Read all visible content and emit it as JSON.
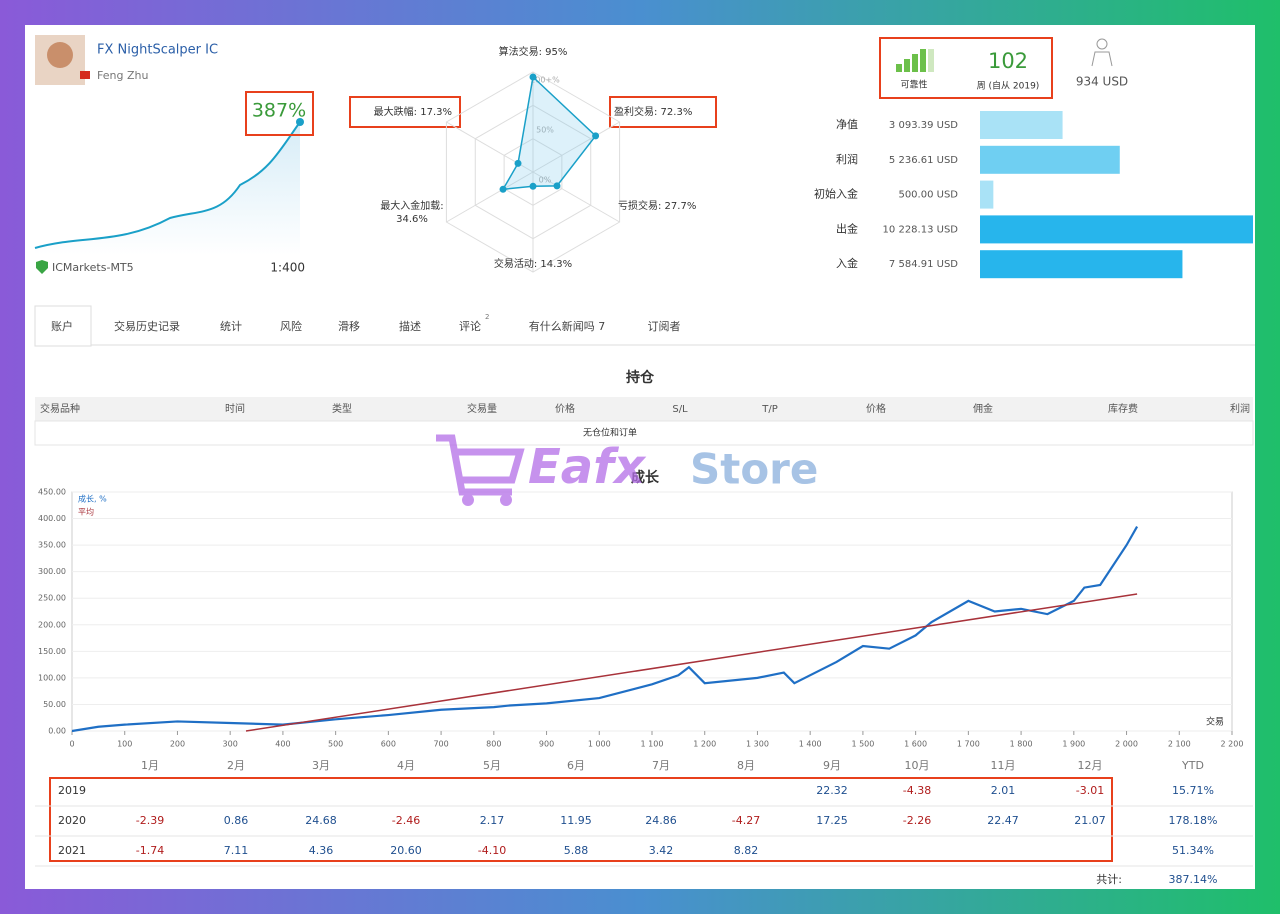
{
  "profile": {
    "name": "FX NightScalper IC",
    "author": "Feng Zhu",
    "gain": "387%",
    "broker": "ICMarkets-MT5",
    "leverage": "1:400"
  },
  "radar": {
    "rlim": [
      0,
      100
    ],
    "rticks": [
      {
        "value": 100,
        "label": "100+%"
      },
      {
        "value": 50,
        "label": "50%"
      },
      {
        "value": 0,
        "label": "0%"
      }
    ],
    "indicators": [
      {
        "label": [
          "算法交易: 95%"
        ],
        "value": 95
      },
      {
        "label": [
          "盈利交易: 72.3%"
        ],
        "value": 72.3
      },
      {
        "label": [
          "亏损交易: 27.7%"
        ],
        "value": 27.7
      },
      {
        "label": [
          "交易活动: 14.3%"
        ],
        "value": 14.3
      },
      {
        "label": [
          "最大入金加载:",
          "34.6%"
        ],
        "value": 34.6
      },
      {
        "label": [
          "最大跌幅: 17.3%"
        ],
        "value": 17.3
      }
    ]
  },
  "stats": {
    "reliability": "可靠性",
    "weeks": "102",
    "weeks_label": "周 (自从 2019)",
    "subscribers": "934 USD"
  },
  "balance": [
    {
      "name": "净值",
      "value": 3093.39,
      "label": "3 093.39 USD",
      "color": "#a9e2f6"
    },
    {
      "name": "利润",
      "value": 5236.61,
      "label": "5 236.61 USD",
      "color": "#6fcff2"
    },
    {
      "name": "初始入金",
      "value": 500.0,
      "label": "500.00 USD",
      "color": "#a9e2f6"
    },
    {
      "name": "出金",
      "value": 10228.13,
      "label": "10 228.13 USD",
      "color": "#27b5ec"
    },
    {
      "name": "入金",
      "value": 7584.91,
      "label": "7 584.91 USD",
      "color": "#27b5ec"
    }
  ],
  "tabs": [
    {
      "label": "账户"
    },
    {
      "label": "交易历史记录"
    },
    {
      "label": "统计"
    },
    {
      "label": "风险"
    },
    {
      "label": "滑移"
    },
    {
      "label": "描述"
    },
    {
      "label": "评论",
      "badge": "2"
    },
    {
      "label": "有什么新闻吗 7"
    },
    {
      "label": "订阅者"
    }
  ],
  "positions": {
    "title": "持仓",
    "headers": [
      "交易品种",
      "时间",
      "类型",
      "交易量",
      "价格",
      "S/L",
      "T/P",
      "价格",
      "佣金",
      "库存费",
      "利润"
    ],
    "empty": "无仓位和订单"
  },
  "watermark": {
    "part1": "Eafx",
    "part2": "Store"
  },
  "chart_data": {
    "type": "line",
    "title": "成长",
    "x_label": "交易",
    "xlim": [
      0,
      2200
    ],
    "xticks": [
      0,
      100,
      200,
      300,
      400,
      500,
      600,
      700,
      800,
      900,
      {
        "value": 1000,
        "label": "1 000"
      },
      {
        "value": 1100,
        "label": "1 100"
      },
      {
        "value": 1200,
        "label": "1 200"
      },
      {
        "value": 1300,
        "label": "1 300"
      },
      {
        "value": 1400,
        "label": "1 400"
      },
      {
        "value": 1500,
        "label": "1 500"
      },
      {
        "value": 1600,
        "label": "1 600"
      },
      {
        "value": 1700,
        "label": "1 700"
      },
      {
        "value": 1800,
        "label": "1 800"
      },
      {
        "value": 1900,
        "label": "1 900"
      },
      {
        "value": 2000,
        "label": "2 000"
      },
      {
        "value": 2100,
        "label": "2 100"
      },
      {
        "value": 2200,
        "label": "2 200"
      }
    ],
    "ylim": [
      0,
      450
    ],
    "yticks": [
      {
        "value": 0,
        "label": "0.00"
      },
      {
        "value": 50,
        "label": "50.00"
      },
      {
        "value": 100,
        "label": "100.00"
      },
      {
        "value": 150,
        "label": "150.00"
      },
      {
        "value": 200,
        "label": "200.00"
      },
      {
        "value": 250,
        "label": "250.00"
      },
      {
        "value": 300,
        "label": "300.00"
      },
      {
        "value": 350,
        "label": "350.00"
      },
      {
        "value": 400,
        "label": "400.00"
      },
      {
        "value": 450,
        "label": "450.00"
      }
    ],
    "series": [
      {
        "name": "成长, %",
        "color": "#1f6fc5",
        "x": [
          0,
          50,
          100,
          200,
          300,
          400,
          500,
          600,
          700,
          800,
          830,
          900,
          1000,
          1100,
          1150,
          1170,
          1200,
          1300,
          1350,
          1370,
          1450,
          1500,
          1550,
          1600,
          1630,
          1700,
          1750,
          1800,
          1850,
          1900,
          1920,
          1950,
          2000,
          2020
        ],
        "values": [
          0,
          8,
          12,
          18,
          15,
          12,
          22,
          30,
          40,
          45,
          48,
          52,
          62,
          88,
          105,
          120,
          90,
          100,
          110,
          90,
          130,
          160,
          155,
          180,
          205,
          245,
          225,
          230,
          220,
          245,
          270,
          275,
          350,
          385
        ]
      },
      {
        "name": "平均",
        "color": "#a8323a",
        "x": [
          330,
          2020
        ],
        "values": [
          0,
          258
        ]
      }
    ]
  },
  "monthly": {
    "months": [
      "1月",
      "2月",
      "3月",
      "4月",
      "5月",
      "6月",
      "7月",
      "8月",
      "9月",
      "10月",
      "11月",
      "12月"
    ],
    "ytd_header": "YTD",
    "rows": [
      {
        "year": "2019",
        "values": [
          null,
          null,
          null,
          null,
          null,
          null,
          null,
          null,
          "22.32",
          "-4.38",
          "2.01",
          "-3.01"
        ],
        "ytd": "15.71%"
      },
      {
        "year": "2020",
        "values": [
          "-2.39",
          "0.86",
          "24.68",
          "-2.46",
          "2.17",
          "11.95",
          "24.86",
          "-4.27",
          "17.25",
          "-2.26",
          "22.47",
          "21.07"
        ],
        "ytd": "178.18%"
      },
      {
        "year": "2021",
        "values": [
          "-1.74",
          "7.11",
          "4.36",
          "20.60",
          "-4.10",
          "5.88",
          "3.42",
          "8.82",
          null,
          null,
          null,
          null
        ],
        "ytd": "51.34%"
      }
    ],
    "total_label": "共计:",
    "total": "387.14%"
  }
}
